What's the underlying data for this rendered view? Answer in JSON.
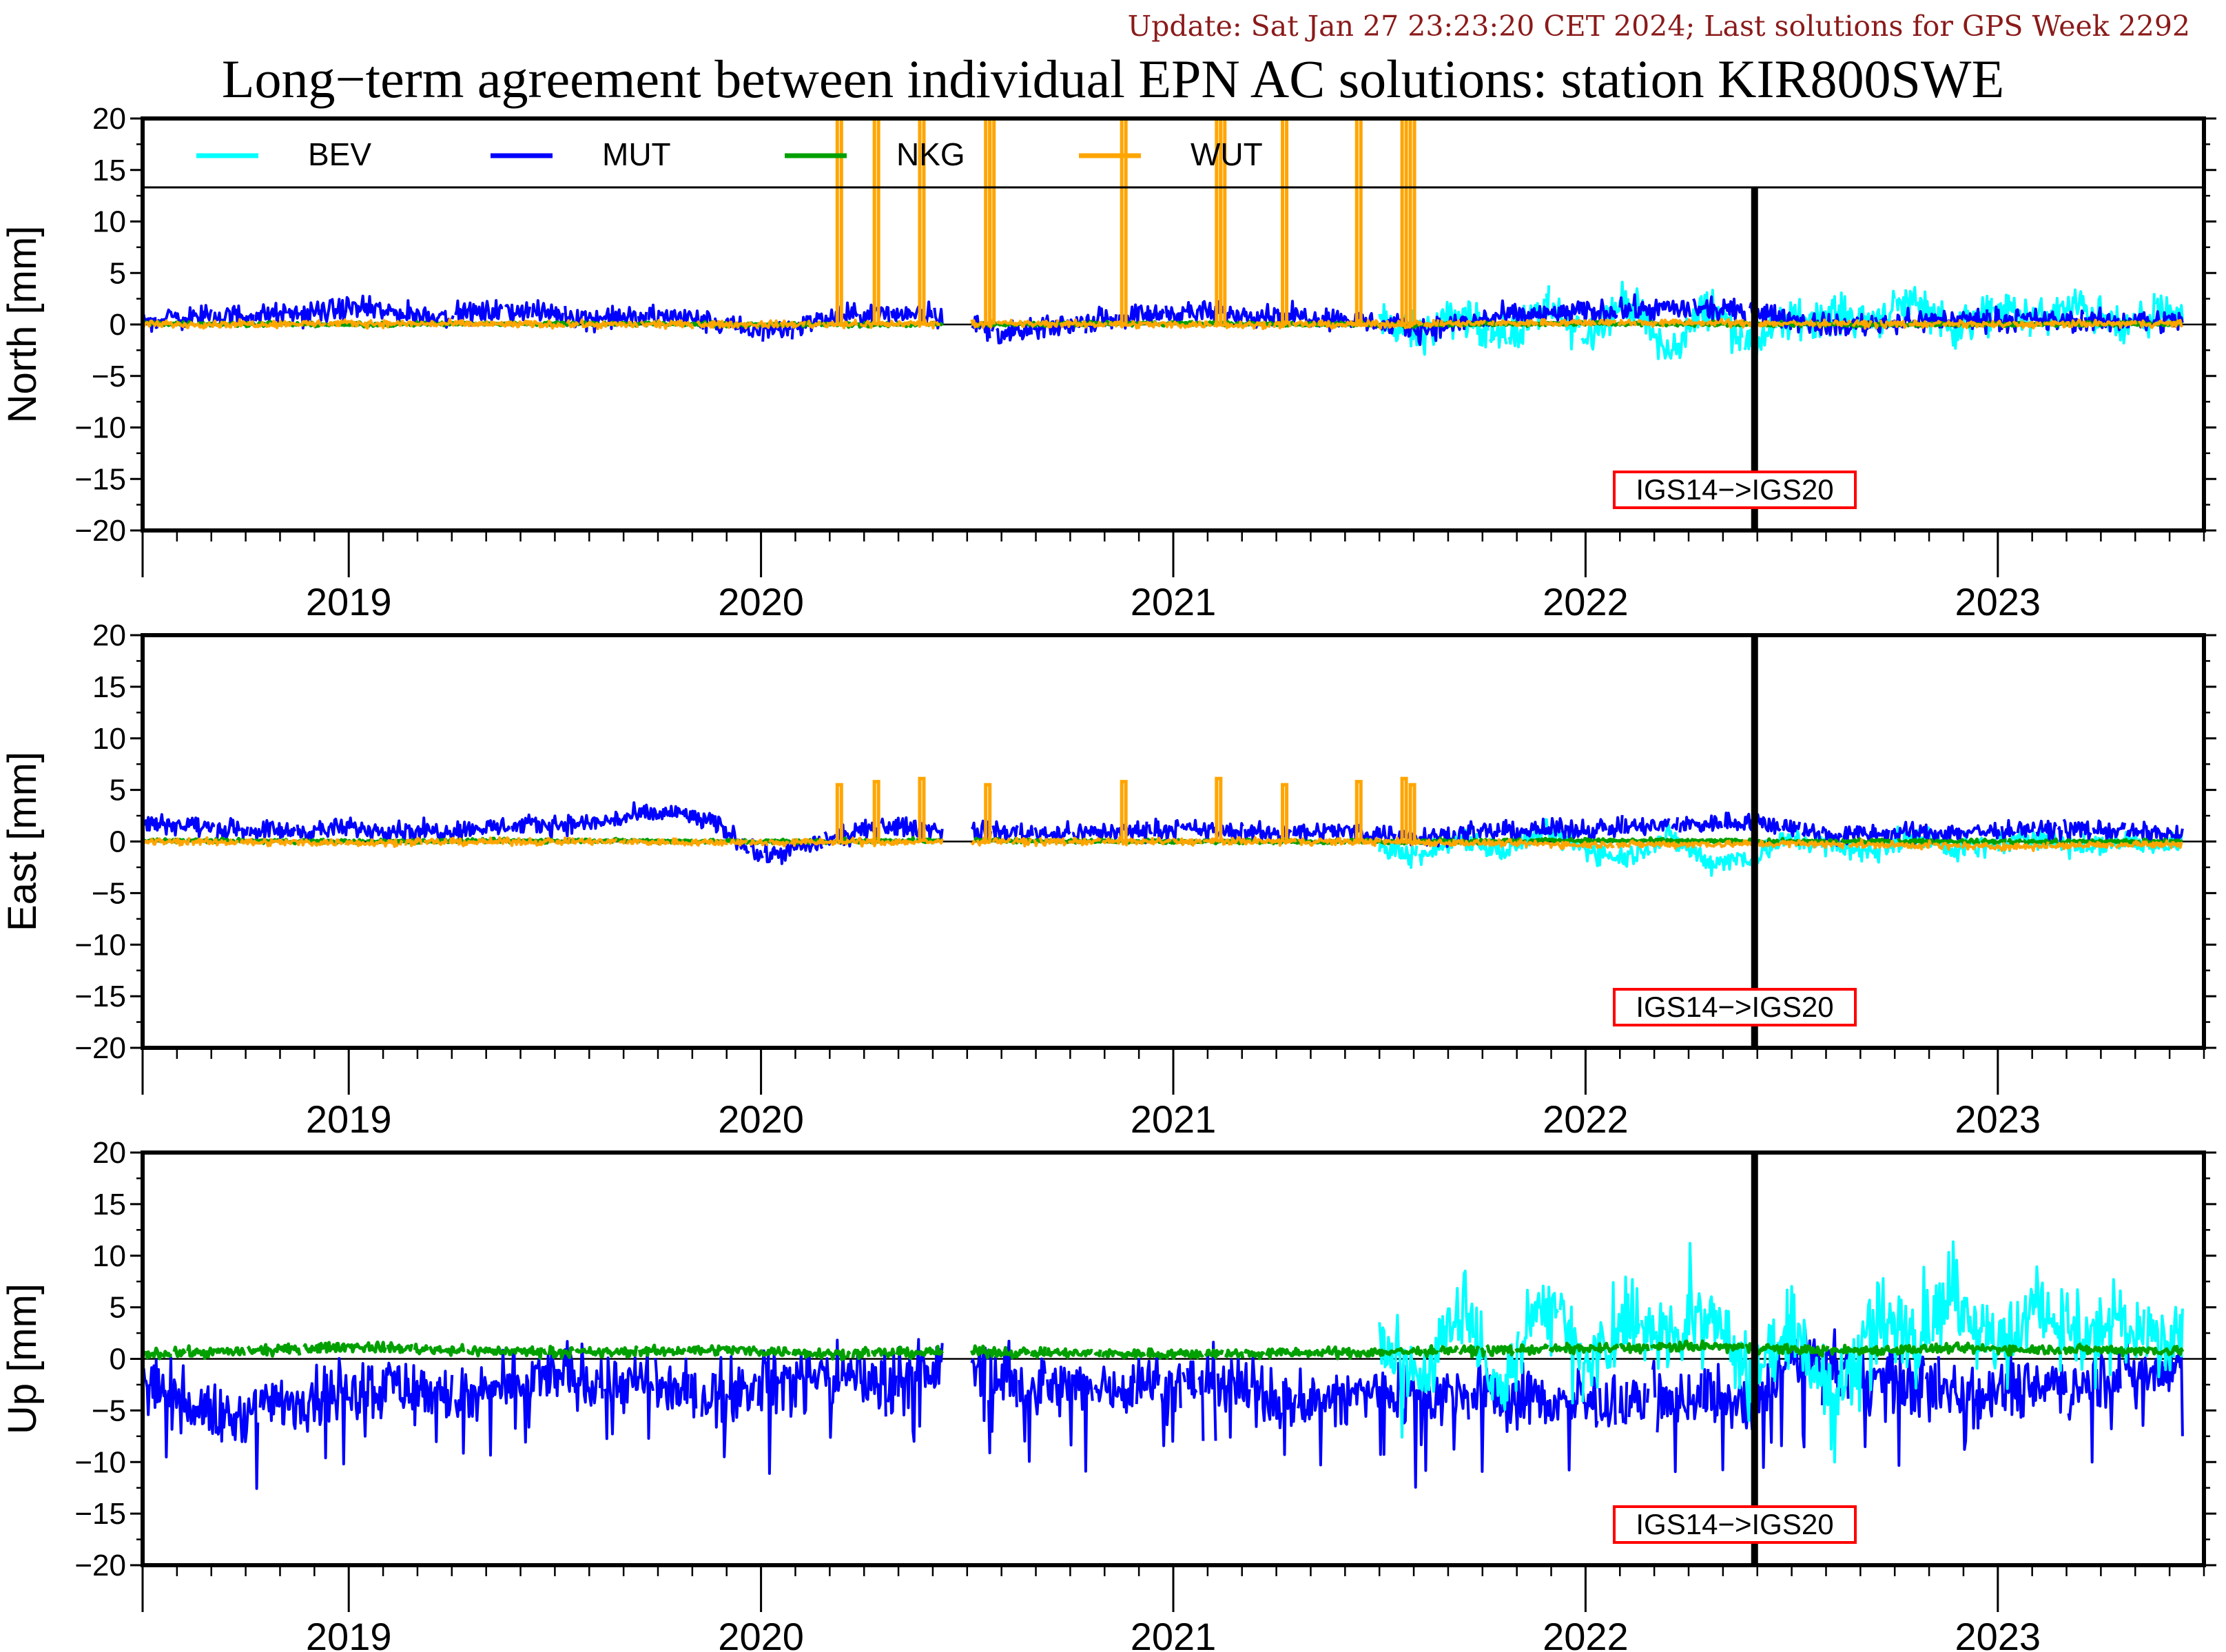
{
  "header": {
    "update_text": "Update: Sat Jan 27 23:23:20 CET 2024; Last solutions for GPS Week 2292",
    "title": "Long−term agreement between individual EPN AC solutions: station KIR800SWE"
  },
  "colors": {
    "BEV": "#00ffff",
    "MUT": "#0000ff",
    "NKG": "#00a000",
    "WUT": "#ffa500",
    "update_text": "#8b1a1a",
    "event_box": "#ff0000"
  },
  "legend": [
    {
      "name": "BEV",
      "color": "#00ffff"
    },
    {
      "name": "MUT",
      "color": "#0000ff"
    },
    {
      "name": "NKG",
      "color": "#00a000"
    },
    {
      "name": "WUT",
      "color": "#ffa500"
    }
  ],
  "chart_data": [
    {
      "type": "line",
      "ylabel": "North [mm]",
      "ylim": [
        -20,
        20
      ],
      "yticks": [
        20,
        15,
        10,
        5,
        0,
        -5,
        -10,
        -15,
        -20
      ],
      "ytick_labels": [
        "20",
        "15",
        "10",
        "5",
        "0",
        "−5",
        "−10",
        "−15",
        "−20"
      ],
      "xlim": [
        2018.5,
        2023.5
      ],
      "xtick_labels": [
        "2019",
        "2020",
        "2021",
        "2022",
        "2023"
      ],
      "legend": "top, inside",
      "event": {
        "x": 2022.41,
        "label": "IGS14−>IGS20"
      },
      "series": [
        {
          "name": "BEV",
          "x": [
            2021.5,
            2021.6,
            2021.7,
            2021.8,
            2021.9,
            2022.0,
            2022.1,
            2022.2,
            2022.3,
            2022.4,
            2022.5,
            2022.6,
            2022.7,
            2022.8,
            2022.9,
            2023.0,
            2023.1,
            2023.2,
            2023.3,
            2023.4,
            2023.45
          ],
          "y": [
            0.2,
            -1.0,
            1.0,
            -1.5,
            1.5,
            -1.0,
            2.5,
            -3.0,
            2.0,
            -2.0,
            0.5,
            1.0,
            0.5,
            2.5,
            -0.5,
            1.5,
            0.5,
            1.8,
            -0.5,
            1.0,
            0.5
          ]
        },
        {
          "name": "MUT",
          "x": [
            2018.5,
            2018.7,
            2018.9,
            2019.0,
            2019.2,
            2019.4,
            2019.6,
            2019.8,
            2020.0,
            2020.2,
            2020.4,
            2020.6,
            2020.8,
            2021.0,
            2021.2,
            2021.4,
            2021.6,
            2021.8,
            2022.0,
            2022.2,
            2022.4,
            2022.6,
            2022.8,
            2023.0,
            2023.2,
            2023.45
          ],
          "y": [
            0.5,
            0.8,
            1.0,
            1.6,
            0.8,
            1.4,
            0.6,
            0.8,
            -0.8,
            0.8,
            1.2,
            -1.0,
            0.4,
            1.2,
            1.0,
            0.6,
            -0.5,
            0.8,
            1.2,
            1.6,
            1.2,
            -0.2,
            0.4,
            0.5,
            0.3,
            0.4
          ]
        },
        {
          "name": "NKG",
          "x": [
            2018.5,
            2019.0,
            2019.5,
            2020.0,
            2020.5,
            2021.0,
            2021.5,
            2022.0,
            2022.5,
            2023.0,
            2023.45
          ],
          "y": [
            0.1,
            0.0,
            0.1,
            0.0,
            0.0,
            0.1,
            0.0,
            0.1,
            0.0,
            0.0,
            0.1
          ]
        },
        {
          "name": "WUT",
          "x": [
            2018.5,
            2019.0,
            2019.5,
            2020.0,
            2020.5,
            2021.0,
            2021.5,
            2022.0,
            2022.5,
            2023.0,
            2023.45
          ],
          "y": [
            0.0,
            0.1,
            0.0,
            0.0,
            0.1,
            0.0,
            0.0,
            0.2,
            0.1,
            0.0,
            0.1
          ],
          "spikes": [
            2020.19,
            2020.28,
            2020.39,
            2020.55,
            2020.56,
            2020.88,
            2021.11,
            2021.12,
            2021.27,
            2021.45,
            2021.56,
            2021.58
          ]
        }
      ]
    },
    {
      "type": "line",
      "ylabel": "East [mm]",
      "ylim": [
        -20,
        20
      ],
      "yticks": [
        20,
        15,
        10,
        5,
        0,
        -5,
        -10,
        -15,
        -20
      ],
      "ytick_labels": [
        "20",
        "15",
        "10",
        "5",
        "0",
        "−5",
        "−10",
        "−15",
        "−20"
      ],
      "xlim": [
        2018.5,
        2023.5
      ],
      "xtick_labels": [
        "2019",
        "2020",
        "2021",
        "2022",
        "2023"
      ],
      "event": {
        "x": 2022.41,
        "label": "IGS14−>IGS20"
      },
      "series": [
        {
          "name": "BEV",
          "x": [
            2021.5,
            2021.6,
            2021.7,
            2021.8,
            2021.9,
            2022.0,
            2022.1,
            2022.2,
            2022.3,
            2022.4,
            2022.5,
            2022.6,
            2022.7,
            2022.8,
            2022.9,
            2023.0,
            2023.1,
            2023.2,
            2023.3,
            2023.4,
            2023.45
          ],
          "y": [
            -0.5,
            -1.5,
            0.5,
            -1.0,
            1.0,
            -0.8,
            -1.5,
            0.5,
            -2.0,
            -1.5,
            0.3,
            -0.5,
            -1.0,
            0.5,
            -0.8,
            -0.3,
            0.5,
            -0.5,
            0.0,
            -0.3,
            -0.2
          ]
        },
        {
          "name": "MUT",
          "x": [
            2018.5,
            2018.7,
            2018.9,
            2019.0,
            2019.2,
            2019.4,
            2019.6,
            2019.7,
            2019.8,
            2019.9,
            2020.0,
            2020.2,
            2020.3,
            2020.5,
            2020.7,
            2020.9,
            2021.0,
            2021.2,
            2021.4,
            2021.6,
            2021.8,
            2022.0,
            2022.2,
            2022.4,
            2022.6,
            2022.8,
            2023.0,
            2023.2,
            2023.45
          ],
          "y": [
            2.0,
            1.2,
            1.0,
            1.3,
            1.0,
            1.5,
            1.8,
            2.5,
            2.8,
            1.5,
            -1.5,
            0.5,
            1.5,
            1.0,
            0.8,
            1.0,
            1.2,
            0.8,
            1.0,
            0.5,
            1.0,
            1.2,
            1.5,
            2.0,
            0.6,
            0.8,
            1.0,
            1.2,
            0.6
          ]
        },
        {
          "name": "NKG",
          "x": [
            2018.5,
            2019.0,
            2019.5,
            2020.0,
            2020.5,
            2021.0,
            2021.5,
            2022.0,
            2022.5,
            2023.0,
            2023.45
          ],
          "y": [
            0.1,
            0.0,
            0.1,
            0.0,
            0.1,
            0.0,
            0.0,
            0.1,
            0.0,
            0.0,
            0.0
          ]
        },
        {
          "name": "WUT",
          "x": [
            2018.5,
            2019.0,
            2019.5,
            2020.0,
            2020.5,
            2021.0,
            2021.5,
            2022.0,
            2022.5,
            2023.0,
            2023.45
          ],
          "y": [
            0.0,
            -0.1,
            0.0,
            -0.1,
            0.0,
            0.0,
            0.0,
            -0.3,
            -0.2,
            -0.5,
            -0.2
          ],
          "spikes": [
            2020.19,
            2020.28,
            2020.39,
            2020.55,
            2020.88,
            2021.11,
            2021.27,
            2021.45,
            2021.56,
            2021.58
          ]
        }
      ]
    },
    {
      "type": "line",
      "ylabel": "Up [mm]",
      "ylim": [
        -20,
        20
      ],
      "yticks": [
        20,
        15,
        10,
        5,
        0,
        -5,
        -10,
        -15,
        -20
      ],
      "ytick_labels": [
        "20",
        "15",
        "10",
        "5",
        "0",
        "−5",
        "−10",
        "−15",
        "−20"
      ],
      "xlim": [
        2018.5,
        2023.5
      ],
      "xtick_labels": [
        "2019",
        "2020",
        "2021",
        "2022",
        "2023"
      ],
      "event": {
        "x": 2022.41,
        "label": "IGS14−>IGS20"
      },
      "series": [
        {
          "name": "BEV",
          "x": [
            2021.5,
            2021.6,
            2021.7,
            2021.8,
            2021.9,
            2022.0,
            2022.1,
            2022.2,
            2022.3,
            2022.4,
            2022.5,
            2022.6,
            2022.7,
            2022.8,
            2022.9,
            2023.0,
            2023.1,
            2023.2,
            2023.3,
            2023.4,
            2023.45
          ],
          "y": [
            2.0,
            -2.0,
            5.0,
            -3.0,
            6.0,
            -1.0,
            4.0,
            2.0,
            5.0,
            -2.0,
            3.0,
            -4.0,
            4.0,
            2.0,
            6.0,
            1.0,
            5.0,
            2.0,
            4.0,
            1.0,
            2.0
          ]
        },
        {
          "name": "MUT",
          "x": [
            2018.5,
            2018.6,
            2018.7,
            2018.9,
            2019.1,
            2019.3,
            2019.5,
            2019.7,
            2019.9,
            2020.1,
            2020.3,
            2020.5,
            2020.7,
            2020.9,
            2021.1,
            2021.3,
            2021.5,
            2021.7,
            2021.9,
            2022.1,
            2022.3,
            2022.4,
            2022.5,
            2022.7,
            2022.9,
            2023.1,
            2023.3,
            2023.45
          ],
          "y": [
            -2.0,
            -4.0,
            -6.0,
            -3.5,
            -2.5,
            -4.0,
            -1.5,
            -2.5,
            -3.5,
            -1.5,
            -2.0,
            -0.5,
            -3.0,
            -2.5,
            -2.0,
            -4.5,
            -3.0,
            -3.5,
            -4.0,
            -4.5,
            -3.5,
            -5.0,
            0.5,
            -2.0,
            -3.0,
            -2.5,
            -1.5,
            -1.0
          ]
        },
        {
          "name": "NKG",
          "x": [
            2018.5,
            2018.8,
            2019.0,
            2019.3,
            2019.6,
            2019.9,
            2020.2,
            2020.5,
            2020.8,
            2021.1,
            2021.4,
            2021.7,
            2022.0,
            2022.3,
            2022.6,
            2022.9,
            2023.2,
            2023.45
          ],
          "y": [
            0.5,
            0.8,
            1.2,
            0.8,
            0.6,
            0.9,
            0.5,
            0.7,
            0.5,
            0.5,
            0.6,
            0.8,
            1.0,
            1.2,
            0.8,
            1.0,
            0.9,
            0.8
          ]
        }
      ]
    }
  ]
}
